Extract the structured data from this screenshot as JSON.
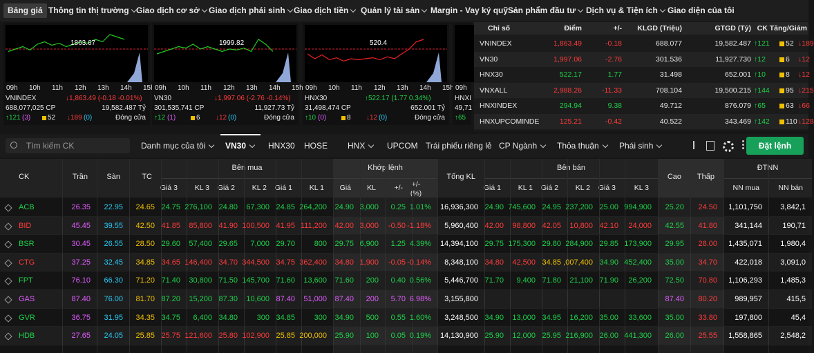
{
  "nav": [
    "Bảng giá",
    "Thông tin thị trường",
    "Giao dịch cơ sở",
    "Giao dịch phái sinh",
    "Giao dịch tiền",
    "Quản lý tài sản",
    "Margin - Vay ký quỹ",
    "Sản phẩm đầu tư",
    "Dịch vụ & Tiện ích",
    "Giao diện của tôi"
  ],
  "mini_charts": [
    {
      "ref_label": "1863.67",
      "times": [
        "09h",
        "10h",
        "11h",
        "12h",
        "13h",
        "14h",
        "15h"
      ],
      "name": "VNINDEX",
      "change": "↓1,863.49 (-0.18 -0.01%)",
      "volume": "688,077,025 CP",
      "value": "19,582.487 Tỷ",
      "up": "↑121",
      "ceiling_count": "(3)",
      "unchanged": "52",
      "down": "↓189",
      "floor_count": "(0)",
      "status": "Đóng cửa"
    },
    {
      "ref_label": "1999.82",
      "times": [
        "09h",
        "10h",
        "11h",
        "12h",
        "13h",
        "14h",
        "15h"
      ],
      "name": "VN30",
      "change": "↓1,997.06 (-2.76 -0.14%)",
      "volume": "301,535,741 CP",
      "value": "11,927.73 Tỷ",
      "up": "↑12",
      "ceiling_count": "(1)",
      "unchanged": "6",
      "down": "↓12",
      "floor_count": "(0)",
      "status": "Đóng cửa"
    },
    {
      "ref_label": "520.4",
      "times": [
        "09h",
        "10h",
        "11h",
        "12h",
        "13h",
        "14h",
        "15h"
      ],
      "name": "HNX30",
      "change": "↑522.17 (1.77 0.34%)",
      "volume": "31,498,474 CP",
      "value": "652.001 Tỷ",
      "up": "↑10",
      "ceiling_count": "(0)",
      "unchanged": "8",
      "down": "↓12",
      "floor_count": "(0)",
      "status": "Đóng cửa"
    },
    {
      "times": [
        "09h"
      ],
      "name": "HNXI",
      "volume": "49,71",
      "up": "↑65"
    }
  ],
  "index_table": {
    "header": [
      "Chỉ số",
      "Điểm",
      "+/-",
      "KLGD (Triệu)",
      "GTGD (Tỷ)",
      "CK Tăng/Giảm"
    ],
    "rows": [
      [
        "VNINDEX",
        "1,863.49",
        "-0.18",
        "688.077",
        "19,582.487",
        "↑121",
        "52",
        "↓189"
      ],
      [
        "VN30",
        "1,997.06",
        "-2.76",
        "301.536",
        "11,927.730",
        "↑12",
        "6",
        "↓12"
      ],
      [
        "HNX30",
        "522.17",
        "1.77",
        "31.498",
        "652.001",
        "↑10",
        "8",
        "↓12"
      ],
      [
        "VNXALL",
        "2,988.26",
        "-11.33",
        "708.104",
        "19,500.215",
        "↑144",
        "95",
        "↓215"
      ],
      [
        "HNXINDEX",
        "294.94",
        "9.38",
        "49.712",
        "876.079",
        "↑65",
        "63",
        "↓66"
      ],
      [
        "HNXUPCOMINDE",
        "125.21",
        "-0.42",
        "40.522",
        "343.469",
        "↑142",
        "110",
        "↓128"
      ]
    ]
  },
  "toolbar": {
    "search_placeholder": "Tìm kiếm CK",
    "tabs": [
      "Danh mục của tôi",
      "VN30",
      "HNX30",
      "HOSE",
      "HNX",
      "UPCOM",
      "Trái phiếu riêng lẻ",
      "CP Ngành",
      "Thỏa thuận",
      "Phái sinh"
    ],
    "order_button": "Đặt lệnh"
  },
  "price_table": {
    "single_headers": [
      "CK",
      "Trần",
      "Sàn",
      "TC",
      "Tổng KL",
      "Cao",
      "Thấp"
    ],
    "groups": [
      "Bên mua",
      "Khớp lệnh",
      "Bên bán",
      "ĐTNN"
    ],
    "sub_headers": [
      "Giá 3",
      "KL 3",
      "Giá 2",
      "KL 2",
      "Giá 1",
      "KL 1",
      "Giá",
      "KL",
      "+/-",
      "+/- (%)",
      "Giá 1",
      "KL 1",
      "Giá 2",
      "KL 2",
      "Giá 3",
      "KL 3",
      "NN mua",
      "NN bán"
    ],
    "rows": [
      [
        "ACB",
        "26.35",
        "22.95",
        "24.65",
        "24.75",
        "276,100",
        "24.80",
        "67,300",
        "24.85",
        "264,200",
        "24.90",
        "3,000",
        "0.25",
        "1.01%",
        "16,936,300",
        "24.90",
        "745,600",
        "24.95",
        "237,200",
        "25.00",
        "994,900",
        "25.20",
        "24.50",
        "1,101,750",
        "3,842,1"
      ],
      [
        "BID",
        "45.45",
        "39.55",
        "42.50",
        "41.85",
        "85,800",
        "41.90",
        "100,500",
        "41.95",
        "111,200",
        "42.00",
        "3,000",
        "-0.50",
        "-1.18%",
        "5,960,400",
        "42.00",
        "98,800",
        "42.05",
        "10,800",
        "42.10",
        "24,000",
        "42.55",
        "41.80",
        "341,144",
        "190,71"
      ],
      [
        "BSR",
        "30.45",
        "26.55",
        "28.50",
        "29.60",
        "57,400",
        "29.65",
        "7,000",
        "29.70",
        "800",
        "29.75",
        "6,900",
        "1.25",
        "4.39%",
        "14,394,100",
        "29.75",
        "175,300",
        "29.80",
        "284,900",
        "29.85",
        "173,900",
        "29.95",
        "28.00",
        "1,435,071",
        "1,980,4"
      ],
      [
        "CTG",
        "37.25",
        "32.45",
        "34.85",
        "34.65",
        "146,400",
        "34.70",
        "344,500",
        "34.75",
        "362,400",
        "34.80",
        "1,900",
        "-0.05",
        "-0.14%",
        "8,348,100",
        "34.80",
        "42,500",
        "34.85",
        ",007,400",
        "34.90",
        "452,400",
        "35.00",
        "34.70",
        "422,018",
        "3,091,0"
      ],
      [
        "FPT",
        "76.10",
        "66.30",
        "71.20",
        "71.40",
        "30,800",
        "71.50",
        "145,700",
        "71.60",
        "13,600",
        "71.60",
        "200",
        "0.40",
        "0.56%",
        "5,446,700",
        "71.70",
        "9,400",
        "71.80",
        "21,100",
        "71.90",
        "26,200",
        "72.50",
        "70.80",
        "1,106,293",
        "1,485,3"
      ],
      [
        "GAS",
        "87.40",
        "76.00",
        "81.70",
        "87.20",
        "15,200",
        "87.30",
        "10,600",
        "87.40",
        "51,000",
        "87.40",
        "200",
        "5.70",
        "6.98%",
        "3,155,800",
        null,
        null,
        null,
        null,
        null,
        null,
        "87.40",
        "80.20",
        "989,957",
        "415,5"
      ],
      [
        "GVR",
        "36.75",
        "31.95",
        "34.35",
        "34.75",
        "6,400",
        "34.80",
        "300",
        "34.85",
        "300",
        "34.90",
        "500",
        "0.55",
        "1.60%",
        "3,248,500",
        "34.90",
        "13,000",
        "34.95",
        "16,200",
        "35.00",
        "33,600",
        "35.00",
        "33.80",
        "197,800",
        "45,4"
      ],
      [
        "HDB",
        "27.65",
        "24.05",
        "25.85",
        "25.75",
        "121,600",
        "25.80",
        "102,900",
        "25.85",
        "200,000",
        "25.90",
        "100",
        "0.05",
        "0.19%",
        "14,130,900",
        "25.90",
        "12,000",
        "25.95",
        "216,900",
        "26.00",
        "441,300",
        "26.00",
        "25.55",
        "1,558,865",
        "2,548,2"
      ]
    ]
  }
}
